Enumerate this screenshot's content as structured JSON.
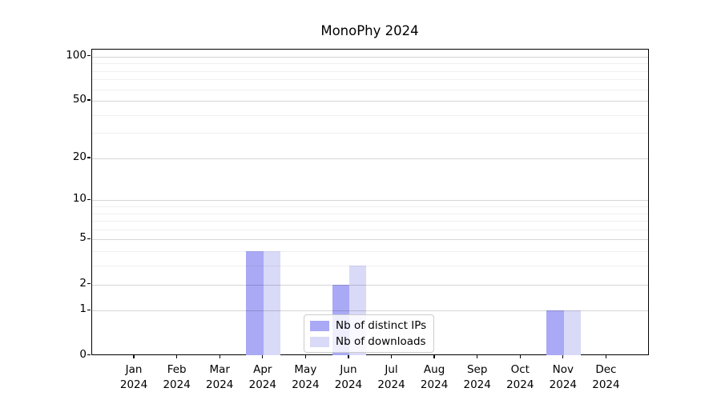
{
  "chart_data": {
    "type": "bar",
    "title": "MonoPhy 2024",
    "categories": [
      "Jan",
      "Feb",
      "Mar",
      "Apr",
      "May",
      "Jun",
      "Jul",
      "Aug",
      "Sep",
      "Oct",
      "Nov",
      "Dec"
    ],
    "year": "2024",
    "series": [
      {
        "name": "Nb of distinct IPs",
        "color": "#a9a9f5",
        "values": [
          0,
          0,
          0,
          4,
          0,
          2,
          0,
          0,
          0,
          0,
          1,
          0
        ]
      },
      {
        "name": "Nb of downloads",
        "color": "#d9d9f8",
        "values": [
          0,
          0,
          0,
          4,
          0,
          3,
          0,
          0,
          0,
          0,
          1,
          0
        ]
      }
    ],
    "xlabel": "",
    "ylabel": "",
    "y_axis": {
      "scale": "log1p",
      "tick_labels": [
        100,
        50,
        20,
        10,
        5,
        2,
        1,
        0
      ],
      "minor_gridlines": [
        3,
        4,
        6,
        7,
        8,
        9,
        30,
        40,
        60,
        70,
        80,
        90
      ],
      "ylim": [
        0,
        112
      ]
    },
    "grid": "on",
    "legend_position": "lower center",
    "colors": {
      "major_grid": "#d4d4d4",
      "minor_grid": "#ededed",
      "axis": "#000000",
      "legend_border": "#cccccc",
      "legend_bg": "rgba(255,255,255,0.8)"
    }
  }
}
